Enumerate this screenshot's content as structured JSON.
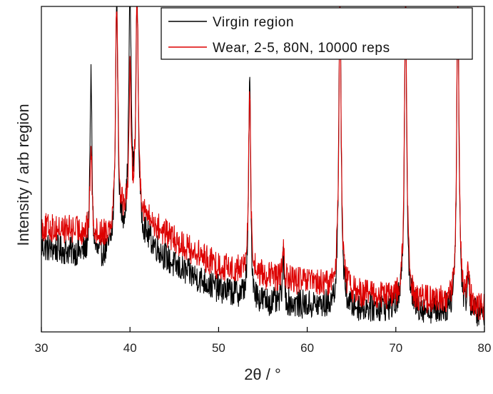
{
  "chart_data": {
    "type": "line",
    "title": "",
    "xlabel": "2θ / °",
    "ylabel": "Intensity / arb region",
    "xlim": [
      30,
      80
    ],
    "ylim": [
      0,
      100
    ],
    "x_ticks": [
      30,
      40,
      50,
      60,
      70,
      80
    ],
    "grid": false,
    "legend_position": "top-right",
    "series": [
      {
        "name": "Virgin region",
        "color": "#000000",
        "peaks": [
          {
            "x": 35.6,
            "height": 77
          },
          {
            "x": 38.5,
            "height": 100
          },
          {
            "x": 40.0,
            "height": 100
          },
          {
            "x": 40.8,
            "height": 100
          },
          {
            "x": 53.5,
            "height": 77
          },
          {
            "x": 57.3,
            "height": 20
          },
          {
            "x": 63.7,
            "height": 100
          },
          {
            "x": 71.1,
            "height": 100
          },
          {
            "x": 77.0,
            "height": 100
          },
          {
            "x": 78.2,
            "height": 15
          }
        ],
        "baseline": [
          [
            30,
            24
          ],
          [
            34,
            22
          ],
          [
            36,
            20
          ],
          [
            38,
            22
          ],
          [
            40,
            30
          ],
          [
            42,
            26
          ],
          [
            45,
            18
          ],
          [
            50,
            11
          ],
          [
            55,
            7
          ],
          [
            60,
            6
          ],
          [
            65,
            5
          ],
          [
            70,
            5
          ],
          [
            75,
            4
          ],
          [
            80,
            3
          ]
        ]
      },
      {
        "name": "Wear, 2-5, 80N, 10000 reps",
        "color": "#dd0000",
        "peaks": [
          {
            "x": 35.6,
            "height": 55
          },
          {
            "x": 38.5,
            "height": 100
          },
          {
            "x": 40.0,
            "height": 75
          },
          {
            "x": 40.8,
            "height": 100
          },
          {
            "x": 53.5,
            "height": 75
          },
          {
            "x": 57.3,
            "height": 22
          },
          {
            "x": 63.7,
            "height": 100
          },
          {
            "x": 71.1,
            "height": 100
          },
          {
            "x": 77.0,
            "height": 100
          },
          {
            "x": 78.2,
            "height": 17
          }
        ],
        "baseline": [
          [
            30,
            30
          ],
          [
            34,
            29
          ],
          [
            36,
            27
          ],
          [
            38,
            28
          ],
          [
            40,
            36
          ],
          [
            42,
            32
          ],
          [
            45,
            26
          ],
          [
            50,
            18
          ],
          [
            55,
            15
          ],
          [
            60,
            13
          ],
          [
            65,
            10
          ],
          [
            70,
            8
          ],
          [
            75,
            7
          ],
          [
            80,
            5
          ]
        ]
      }
    ]
  }
}
